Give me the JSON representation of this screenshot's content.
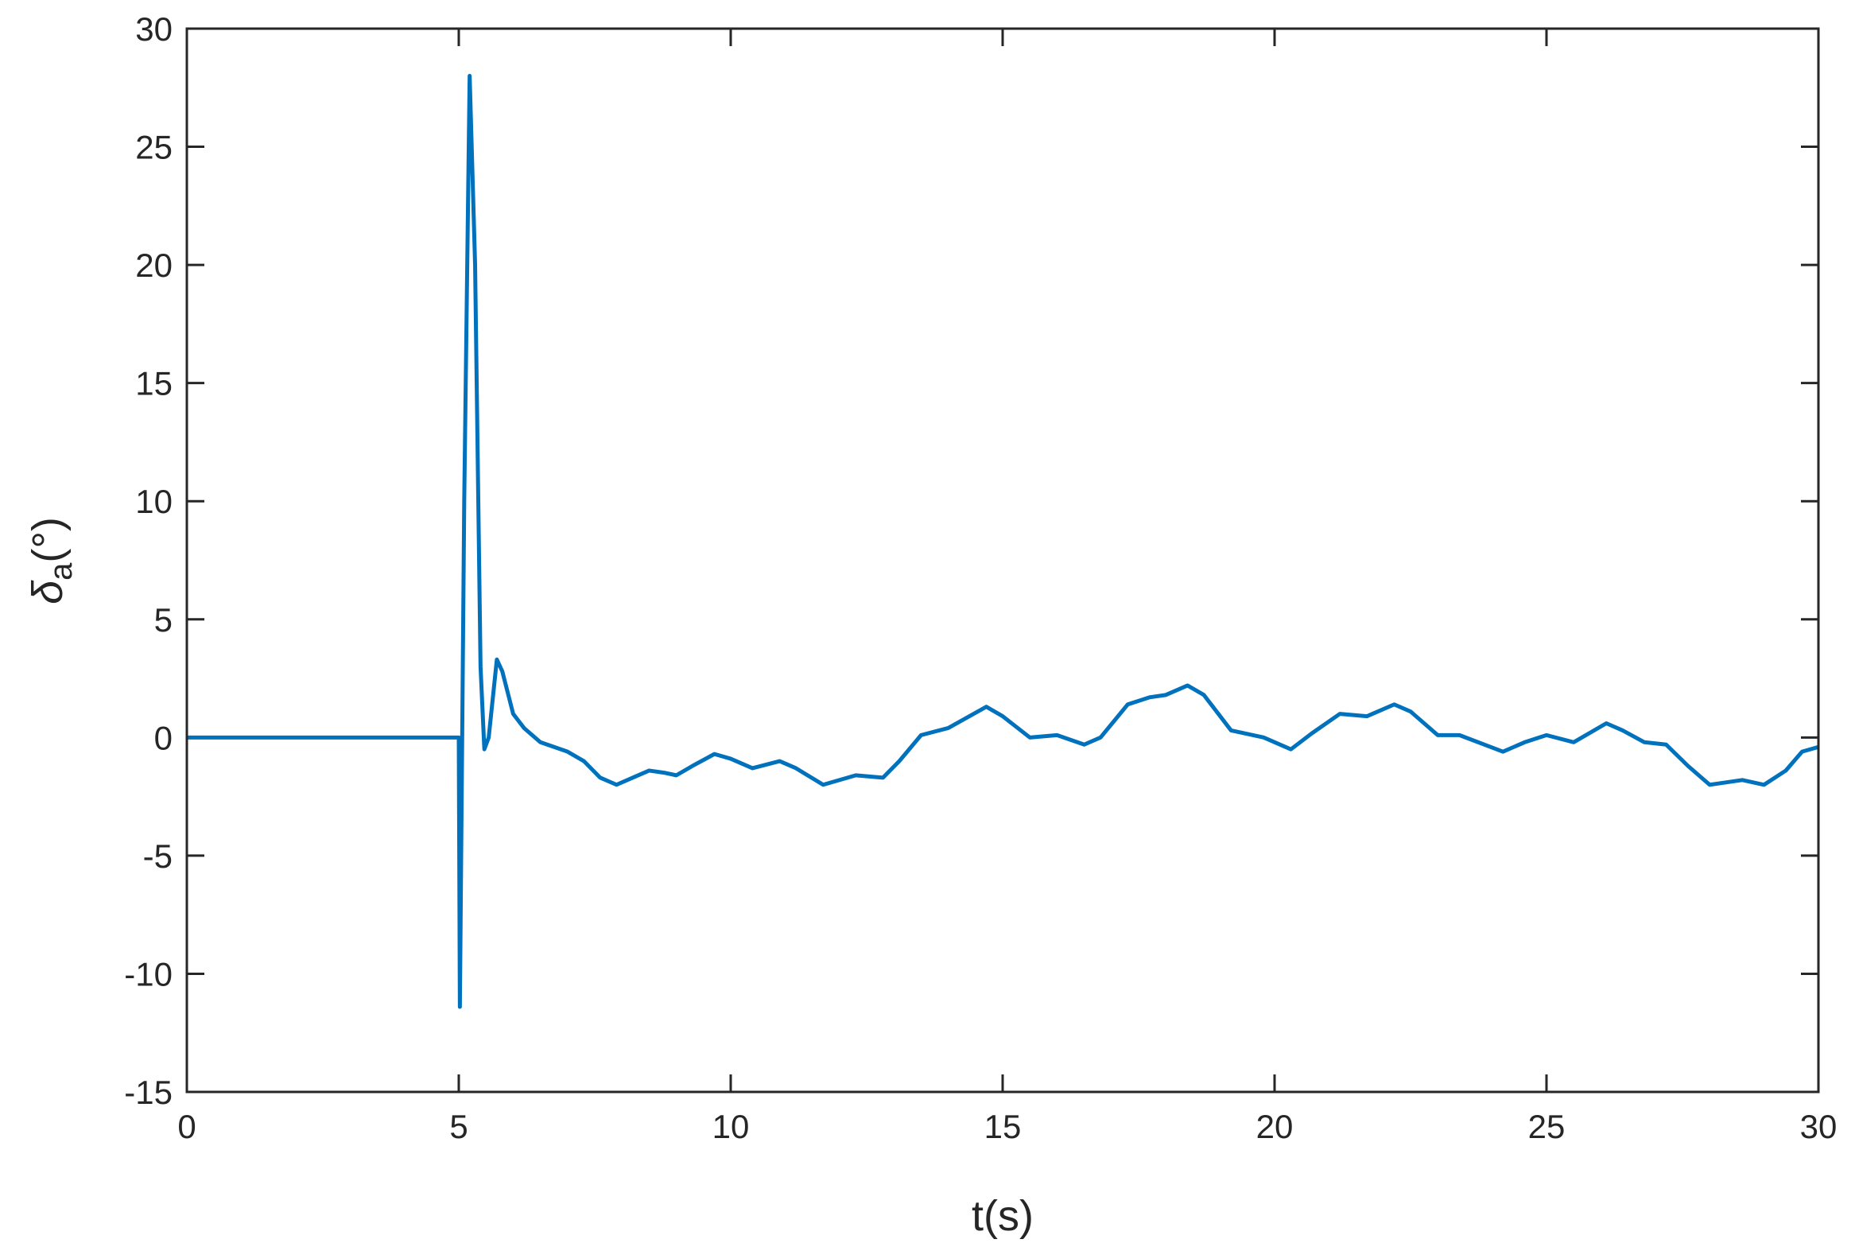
{
  "chart_data": {
    "type": "line",
    "xlabel": "t(s)",
    "ylabel": {
      "symbol": "δ",
      "subscript": "a",
      "unit": "(°)"
    },
    "xlim": [
      0,
      30
    ],
    "ylim": [
      -15,
      30
    ],
    "xticks": [
      0,
      5,
      10,
      15,
      20,
      25,
      30
    ],
    "yticks": [
      -15,
      -10,
      -5,
      0,
      5,
      10,
      15,
      20,
      25,
      30
    ],
    "box": true,
    "series": [
      {
        "color": "#0072bd",
        "x": [
          0,
          5.0,
          5.02,
          5.1,
          5.2,
          5.3,
          5.4,
          5.47,
          5.55,
          5.7,
          5.8,
          6.0,
          6.2,
          6.5,
          7.0,
          7.3,
          7.6,
          7.9,
          8.2,
          8.5,
          8.8,
          9.0,
          9.3,
          9.7,
          10.0,
          10.4,
          10.9,
          11.2,
          11.7,
          12.3,
          12.8,
          13.1,
          13.5,
          14.0,
          14.7,
          15.0,
          15.5,
          16.0,
          16.5,
          16.8,
          17.3,
          17.7,
          18.0,
          18.4,
          18.7,
          19.2,
          19.8,
          20.3,
          20.7,
          21.2,
          21.7,
          22.2,
          22.5,
          23.0,
          23.4,
          24.2,
          24.6,
          25.0,
          25.5,
          26.1,
          26.4,
          26.8,
          27.2,
          27.6,
          28.0,
          28.6,
          29.0,
          29.4,
          29.7,
          30
        ],
        "values": [
          0,
          0,
          -11.4,
          10,
          28,
          20,
          3,
          -0.5,
          0,
          3.3,
          2.8,
          1,
          0.4,
          -0.2,
          -0.6,
          -1.0,
          -1.7,
          -2.0,
          -1.7,
          -1.4,
          -1.5,
          -1.6,
          -1.2,
          -0.7,
          -0.9,
          -1.3,
          -1.0,
          -1.3,
          -2.0,
          -1.6,
          -1.7,
          -1.0,
          0.1,
          0.4,
          1.3,
          0.9,
          0.0,
          0.1,
          -0.3,
          0,
          1.4,
          1.7,
          1.8,
          2.2,
          1.8,
          0.3,
          0,
          -0.5,
          0.2,
          1.0,
          0.9,
          1.4,
          1.1,
          0.1,
          0.1,
          -0.6,
          -0.2,
          0.1,
          -0.2,
          0.6,
          0.3,
          -0.2,
          -0.3,
          -1.2,
          -2.0,
          -1.8,
          -2.0,
          -1.4,
          -0.6,
          -0.4
        ]
      }
    ]
  }
}
